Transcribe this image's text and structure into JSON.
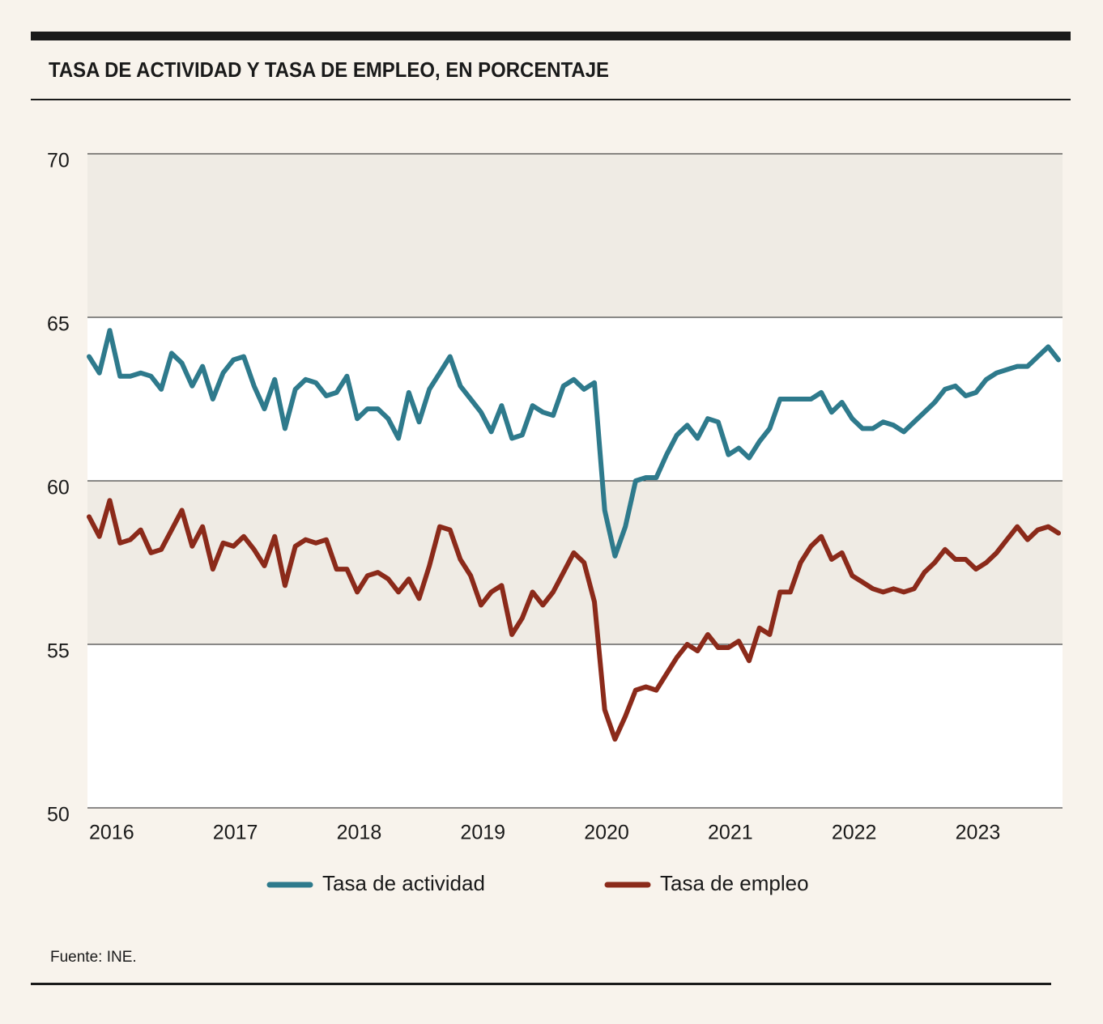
{
  "chart_data": {
    "type": "line",
    "title": "TASA DE ACTIVIDAD Y TASA DE EMPLEO, EN PORCENTAJE",
    "source": "Fuente: INE.",
    "categories": [
      "2016",
      null,
      null,
      null,
      null,
      null,
      null,
      null,
      null,
      null,
      null,
      null,
      "2017",
      null,
      null,
      null,
      null,
      null,
      null,
      null,
      null,
      null,
      null,
      null,
      "2018",
      null,
      null,
      null,
      null,
      null,
      null,
      null,
      null,
      null,
      null,
      null,
      "2019",
      null,
      null,
      null,
      null,
      null,
      null,
      null,
      null,
      null,
      null,
      null,
      "2020",
      null,
      null,
      null,
      null,
      null,
      null,
      null,
      null,
      null,
      null,
      null,
      "2021",
      null,
      null,
      null,
      null,
      null,
      null,
      null,
      null,
      null,
      null,
      null,
      "2022",
      null,
      null,
      null,
      null,
      null,
      null,
      null,
      null,
      null,
      null,
      null,
      "2023",
      null,
      null,
      null,
      null,
      null,
      null,
      null,
      null,
      null,
      null
    ],
    "series": [
      {
        "name": "Tasa de actividad",
        "color": "#2e7a8c",
        "values": [
          63.8,
          63.3,
          64.6,
          63.2,
          63.2,
          63.3,
          63.2,
          62.8,
          63.9,
          63.6,
          62.9,
          63.5,
          62.5,
          63.3,
          63.7,
          63.8,
          62.9,
          62.2,
          63.1,
          61.6,
          62.8,
          63.1,
          63.0,
          62.6,
          62.7,
          63.2,
          61.9,
          62.2,
          62.2,
          61.9,
          61.3,
          62.7,
          61.8,
          62.8,
          63.3,
          63.8,
          62.9,
          62.5,
          62.1,
          61.5,
          62.3,
          61.3,
          61.4,
          62.3,
          62.1,
          62.0,
          62.9,
          63.1,
          62.8,
          63.0,
          59.1,
          57.7,
          58.6,
          60.0,
          60.1,
          60.1,
          60.8,
          61.4,
          61.7,
          61.3,
          61.9,
          61.8,
          60.8,
          61.0,
          60.7,
          61.2,
          61.6,
          62.5,
          62.5,
          62.5,
          62.5,
          62.7,
          62.1,
          62.4,
          61.9,
          61.6,
          61.6,
          61.8,
          61.7,
          61.5,
          61.8,
          62.1,
          62.4,
          62.8,
          62.9,
          62.6,
          62.7,
          63.1,
          63.3,
          63.4,
          63.5,
          63.5,
          63.8,
          64.1,
          63.7
        ]
      },
      {
        "name": "Tasa de empleo",
        "color": "#8b2a1a",
        "values": [
          58.9,
          58.3,
          59.4,
          58.1,
          58.2,
          58.5,
          57.8,
          57.9,
          58.5,
          59.1,
          58.0,
          58.6,
          57.3,
          58.1,
          58.0,
          58.3,
          57.9,
          57.4,
          58.3,
          56.8,
          58.0,
          58.2,
          58.1,
          58.2,
          57.3,
          57.3,
          56.6,
          57.1,
          57.2,
          57.0,
          56.6,
          57.0,
          56.4,
          57.4,
          58.6,
          58.5,
          57.6,
          57.1,
          56.2,
          56.6,
          56.8,
          55.3,
          55.8,
          56.6,
          56.2,
          56.6,
          57.2,
          57.8,
          57.5,
          56.3,
          53.0,
          52.1,
          52.8,
          53.6,
          53.7,
          53.6,
          54.1,
          54.6,
          55.0,
          54.8,
          55.3,
          54.9,
          54.9,
          55.1,
          54.5,
          55.5,
          55.3,
          56.6,
          56.6,
          57.5,
          58.0,
          58.3,
          57.6,
          57.8,
          57.1,
          56.9,
          56.7,
          56.6,
          56.7,
          56.6,
          56.7,
          57.2,
          57.5,
          57.9,
          57.6,
          57.6,
          57.3,
          57.5,
          57.8,
          58.2,
          58.6,
          58.2,
          58.5,
          58.6,
          58.4
        ]
      }
    ],
    "ylim": [
      50,
      70
    ],
    "yticks": [
      50,
      55,
      60,
      65,
      70
    ],
    "grid": true
  }
}
